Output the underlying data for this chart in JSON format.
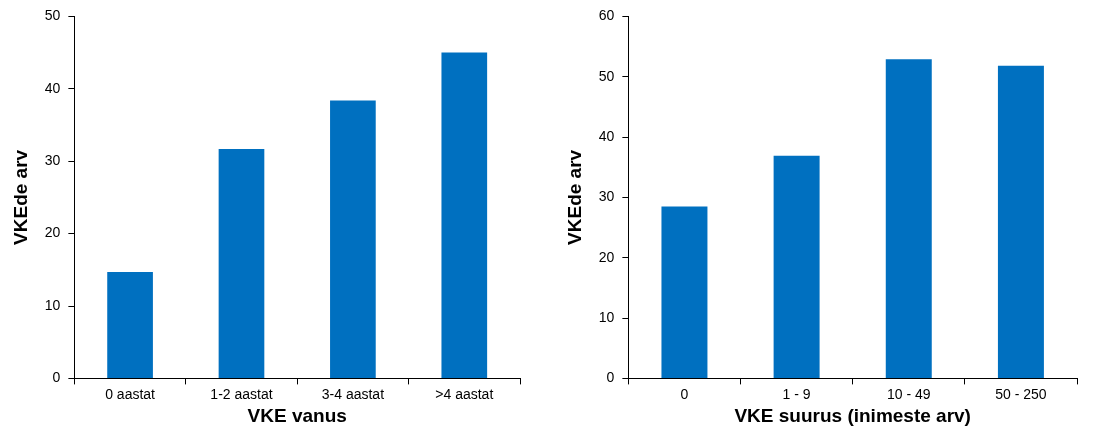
{
  "chart_data": [
    {
      "type": "bar",
      "xlabel": "VKE vanus",
      "ylabel": "VKEde arv",
      "categories": [
        "0 aastat",
        "1-2 aastat",
        "3-4 aastat",
        ">4 aastat"
      ],
      "values": [
        14.7,
        31.7,
        38.4,
        45.0
      ],
      "color": "#0070c0",
      "ylim": [
        0,
        50
      ],
      "yticks": [
        0,
        10,
        20,
        30,
        40,
        50
      ]
    },
    {
      "type": "bar",
      "xlabel": "VKE suurus (inimeste arv)",
      "ylabel": "VKEde arv",
      "categories": [
        "0",
        "1 - 9",
        "10 - 49",
        "50 - 250"
      ],
      "values": [
        28.5,
        36.9,
        52.9,
        51.8
      ],
      "color": "#0070c0",
      "ylim": [
        0,
        60
      ],
      "yticks": [
        0,
        10,
        20,
        30,
        40,
        50,
        60
      ]
    }
  ]
}
